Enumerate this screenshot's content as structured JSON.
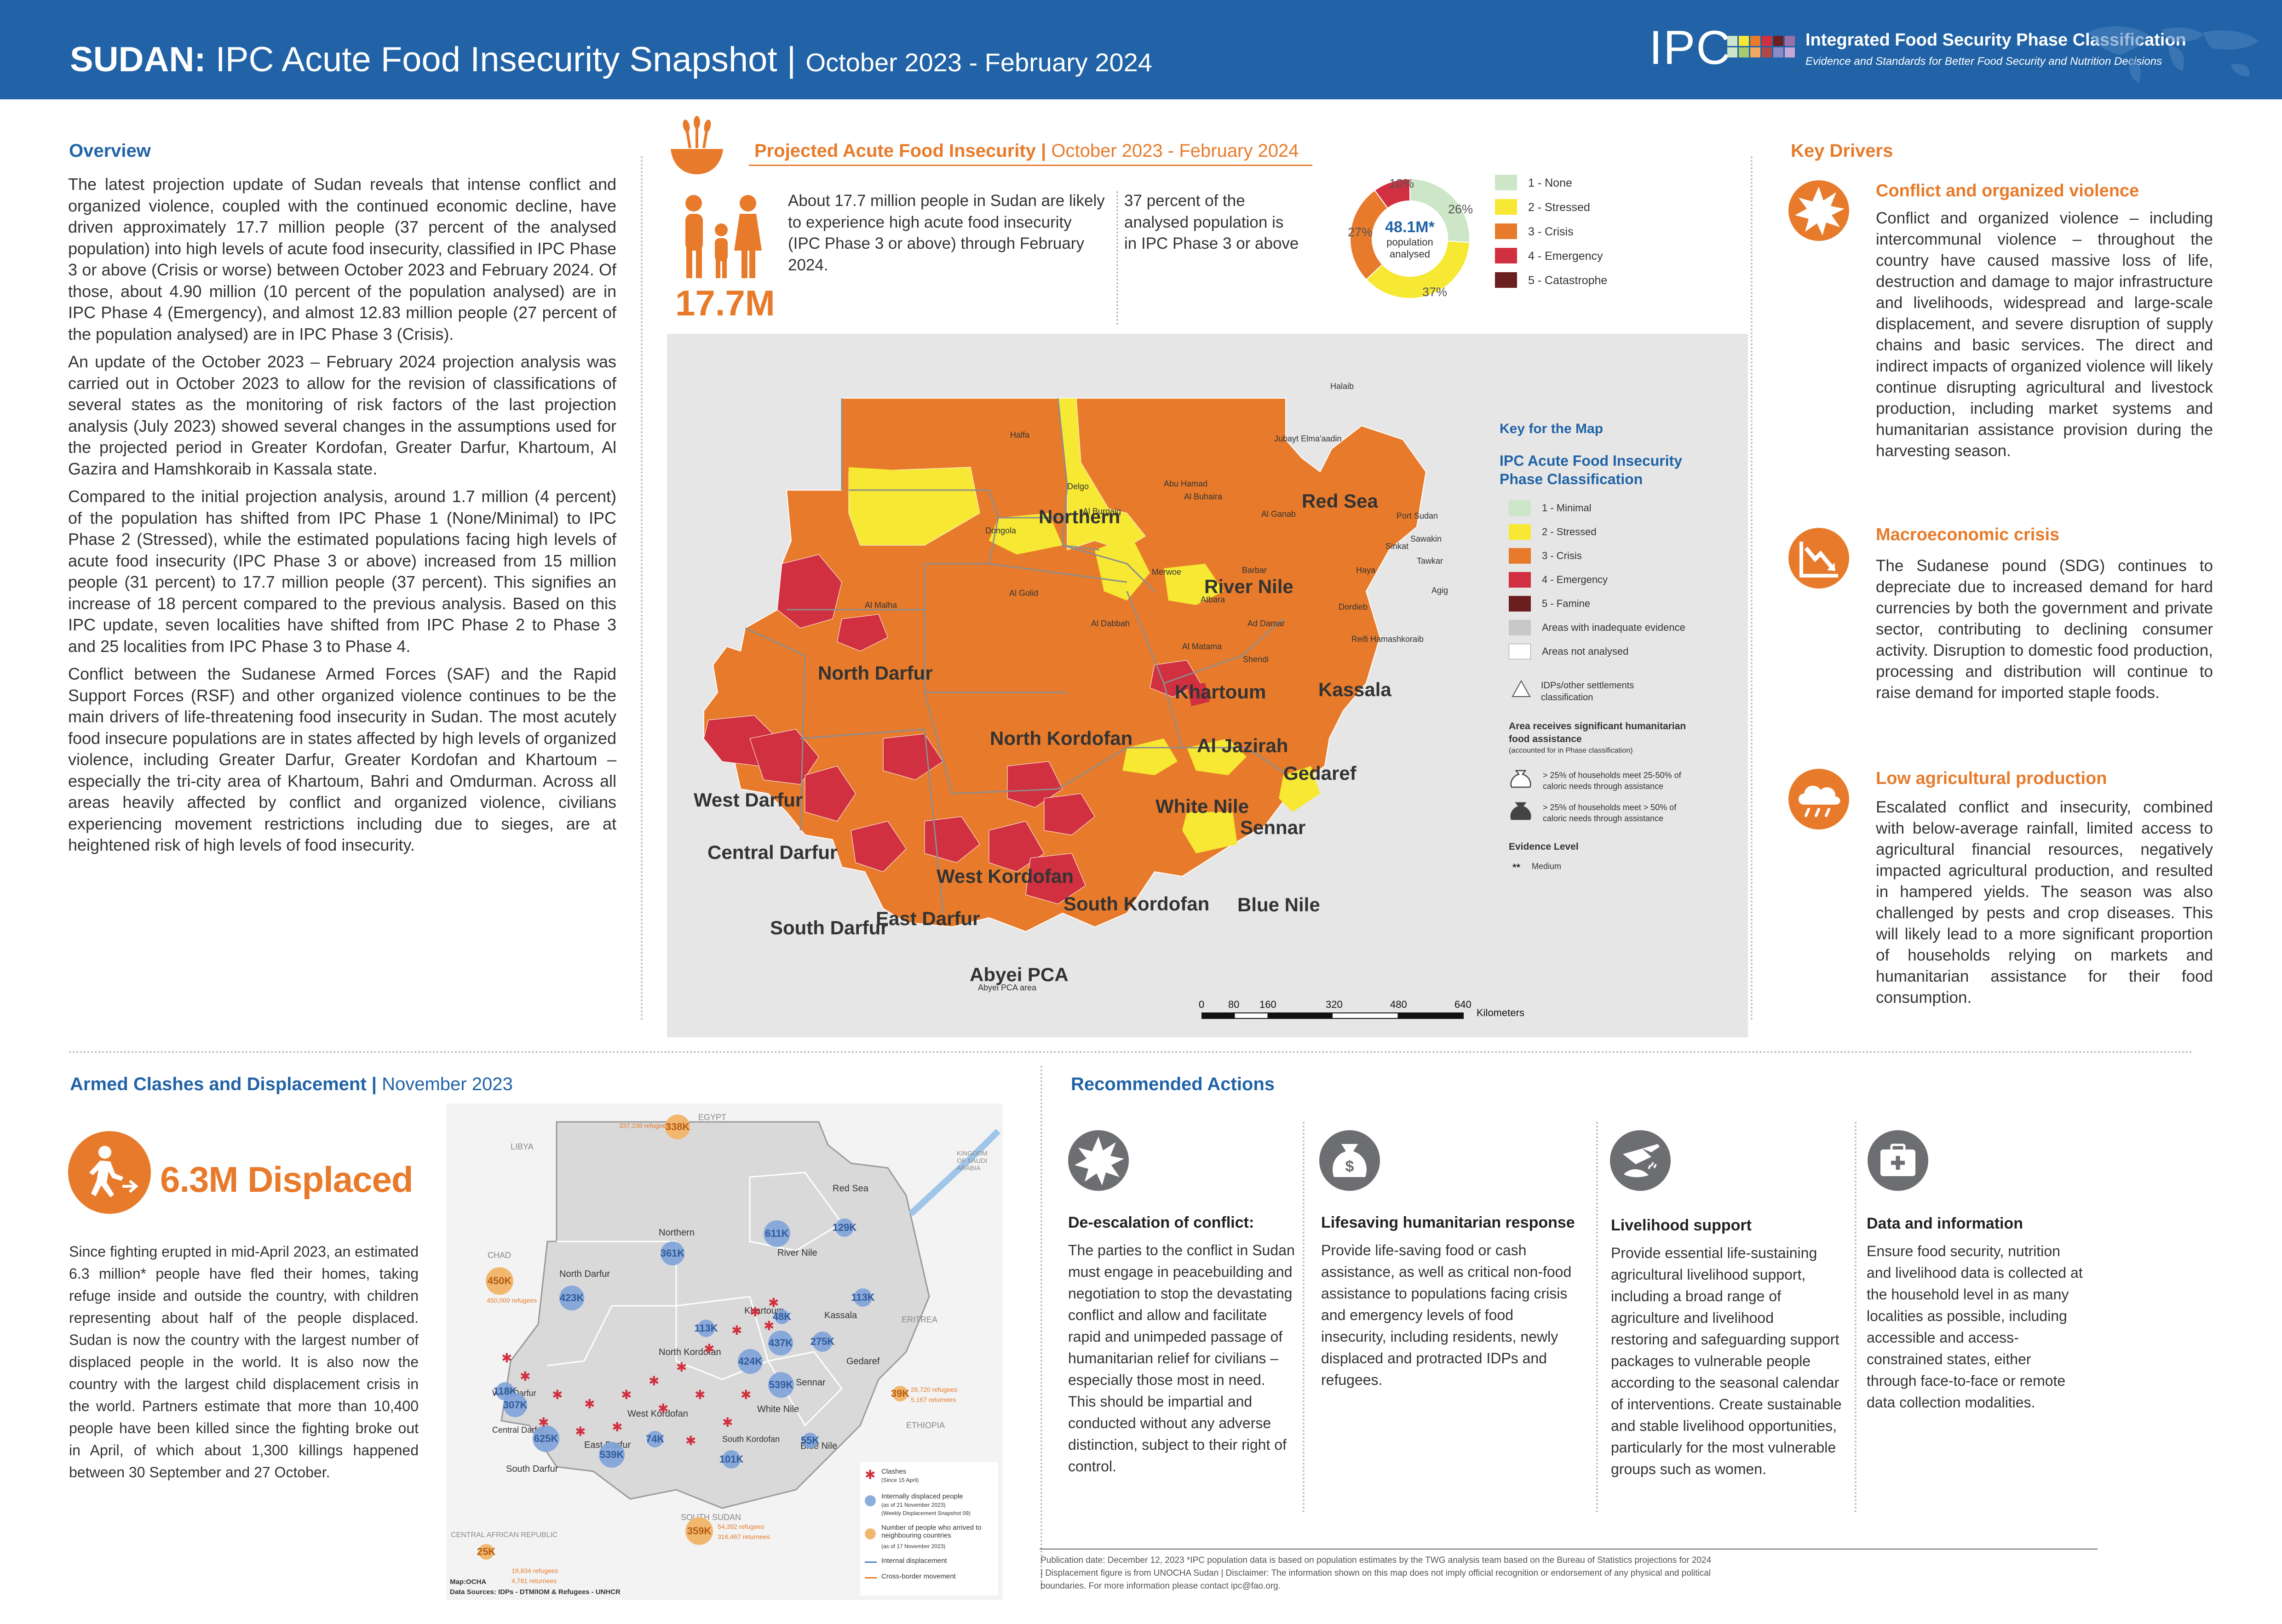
{
  "header": {
    "country": "SUDAN:",
    "title": " IPC Acute Food Insecurity Snapshot | ",
    "period": "October 2023 - February 2024",
    "logo_text": "IPC",
    "org_name": "Integrated Food Security Phase Classification",
    "org_tagline": "Evidence and Standards for Better Food Security and Nutrition Decisions"
  },
  "overview": {
    "heading": "Overview",
    "paragraphs": [
      "The latest projection update of Sudan reveals that intense conflict and organized violence, coupled with the continued economic decline, have driven approximately 17.7 million people (37 percent of the analysed population) into high levels of acute food insecurity, classified in IPC Phase 3 or above (Crisis or worse) between October 2023 and February 2024. Of those, about 4.90 million (10 percent of the population analysed) are in IPC Phase 4 (Emergency), and almost 12.83 million people (27 percent of the population analysed) are in IPC Phase 3 (Crisis).",
      "An update of the October 2023 – February 2024 projection analysis was carried out in October 2023 to allow for the revision of classifications of several states as the monitoring of risk factors of the last projection analysis (July 2023) showed several changes in the assumptions used for the projected period in Greater Kordofan, Greater Darfur, Khartoum, Al Gazira and Hamshkoraib in Kassala state.",
      "Compared to the initial projection analysis, around 1.7 million (4 percent) of the population has shifted from IPC Phase 1 (None/Minimal) to IPC Phase 2 (Stressed), while the estimated populations facing high levels of acute food insecurity (IPC Phase 3 or above) increased from 15 million people (31 percent) to 17.7 million people (37 percent). This signifies an increase of 18 percent compared to the previous analysis. Based on this IPC update, seven localities have shifted from IPC Phase 2 to Phase 3 and 25 localities from IPC Phase 3 to Phase 4.",
      "Conflict between the Sudanese Armed Forces (SAF) and the Rapid Support Forces (RSF) and other organized violence continues to be the main drivers of life-threatening food insecurity in Sudan. The most acutely food insecure populations are in states affected by high levels of organized violence, including Greater Darfur, Greater Kordofan and Khartoum – especially the tri-city area of Khartoum, Bahri and Omdurman. Across all areas heavily affected by conflict and organized violence, civilians experiencing movement restrictions including due to sieges, are at heightened risk of high levels of food insecurity."
    ]
  },
  "projected": {
    "heading": "Projected Acute Food Insecurity | ",
    "period": "October 2023 - February 2024",
    "big_number": "17.7M",
    "text1": "About 17.7 million people in Sudan are likely to experience high acute food insecurity (IPC Phase 3 or above) through February 2024.",
    "text2": "37 percent of the analysed population is in IPC Phase 3 or above",
    "donut_center": "48.1M*",
    "donut_sub": "population analysed",
    "donut": [
      {
        "label": "1 - None",
        "pct": 26,
        "color": "#cde6c7"
      },
      {
        "label": "2 - Stressed",
        "pct": 37,
        "color": "#f6e833"
      },
      {
        "label": "3 - Crisis",
        "pct": 27,
        "color": "#e77b2b"
      },
      {
        "label": "4 - Emergency",
        "pct": 10,
        "color": "#d0303f"
      },
      {
        "label": "5 - Catastrophe",
        "pct": 0,
        "color": "#6b1f1f"
      }
    ],
    "donut_pct_labels": [
      "26%",
      "37%",
      "27%",
      "10%"
    ]
  },
  "map": {
    "key_title": "Key for the Map",
    "key_subtitle": "IPC Acute Food Insecurity Phase Classification",
    "legend": [
      {
        "label": "1 - Minimal",
        "color": "#cde6c7"
      },
      {
        "label": "2 - Stressed",
        "color": "#f6e833"
      },
      {
        "label": "3 - Crisis",
        "color": "#e77b2b"
      },
      {
        "label": "4 - Emergency",
        "color": "#d0303f"
      },
      {
        "label": "5 - Famine",
        "color": "#6b1f1f"
      },
      {
        "label": "Areas with inadequate evidence",
        "color": "#c8c8c8"
      },
      {
        "label": "Areas not analysed",
        "color": "#ffffff"
      }
    ],
    "idp_label": "IDPs/other settlements classification",
    "assist_title": "Area receives significant humanitarian food assistance",
    "assist_note": "(accounted for in Phase classification)",
    "assist1": "> 25% of households meet 25-50% of caloric needs through assistance",
    "assist2": "> 25% of households meet > 50% of caloric needs through assistance",
    "evidence_title": "Evidence Level",
    "evidence_medium": "Medium",
    "evidence_stars": "**",
    "scale_ticks": [
      "0",
      "80",
      "160",
      "320",
      "480",
      "640"
    ],
    "scale_unit": "Kilometers",
    "states": [
      "Northern",
      "Red Sea",
      "River Nile",
      "North Darfur",
      "Khartoum",
      "Kassala",
      "North Kordofan",
      "Al Jazirah",
      "Gedaref",
      "White Nile",
      "Sennar",
      "West Darfur",
      "Central Darfur",
      "West Kordofan",
      "South Kordofan",
      "East Darfur",
      "South Darfur",
      "Blue Nile",
      "Abyei PCA"
    ],
    "localities": [
      "Halfa",
      "Delgo",
      "Halaib",
      "Jubayt Elma'aadin",
      "Abu Hamad",
      "Al Ganab",
      "Al Burgaig",
      "Dongola",
      "Al Buhaira",
      "Port Sudan",
      "Sawakin",
      "Sinkat",
      "Tawkar",
      "Haya",
      "Agig",
      "Barbar",
      "Merwoe",
      "Al Golid",
      "Atbara",
      "Ad Damar",
      "Al Dabbah",
      "Dordieb",
      "Al Malha",
      "Shendi",
      "Al Matama",
      "Reifi Hamashkoraib",
      "Abyei PCA area"
    ]
  },
  "drivers": {
    "heading": "Key Drivers",
    "items": [
      {
        "title": "Conflict and organized violence",
        "icon": "explosion-icon",
        "text": "Conflict and organized violence – including intercommunal violence – throughout the country have caused massive loss of life, destruction and damage to major infrastructure and livelihoods, widespread and large-scale displacement, and severe disruption of supply chains and basic services. The direct and indirect impacts of organized violence will likely continue disrupting agricultural and livestock production, including market systems and humanitarian assistance provision during the harvesting season."
      },
      {
        "title": "Macroeconomic crisis",
        "icon": "declining-chart-icon",
        "text": "The Sudanese pound (SDG) continues to depreciate due to increased demand for hard currencies by both the government and private sector, contributing to declining consumer activity. Disruption to domestic food production, processing and distribution will continue to raise demand for imported staple foods."
      },
      {
        "title": "Low agricultural production",
        "icon": "rain-cloud-icon",
        "text": "Escalated conflict and insecurity, combined with below-average rainfall, limited access to agricultural financial resources, negatively impacted agricultural production, and resulted in hampered yields. The season was also challenged by pests and crop diseases. This will likely lead to a more significant proportion of households relying on markets and humanitarian assistance for their food consumption."
      }
    ]
  },
  "displacement": {
    "heading": "Armed Clashes and Displacement | ",
    "period": "November 2023",
    "big": "6.3M Displaced",
    "text": "Since fighting erupted in mid-April 2023, an estimated 6.3 million* people have fled their homes, taking refuge inside and outside the country, with children representing about half of the people displaced. Sudan is now the country with the largest number of displaced people in the world. It is also now the country with the largest child displacement crisis in the world. Partners estimate that more than 10,400 people have been killed since the fighting broke out in April, of which about 1,300 killings happened between 30 September and 27 October.",
    "map_states": [
      "Northern",
      "Red Sea",
      "River Nile",
      "North Darfur",
      "North Kordofan",
      "West Kordofan",
      "East Darfur",
      "South Darfur",
      "Kassala",
      "Gedaref",
      "Sennar",
      "Blue Nile",
      "White Nile",
      "Khartoum",
      "Central Darfur",
      "West Darfur",
      "South Kordofan"
    ],
    "countries": [
      "LIBYA",
      "EGYPT",
      "KINGDOM OF SAUDI ARABIA",
      "CHAD",
      "ERITREA",
      "ETHIOPIA",
      "SOUTH SUDAN",
      "CENTRAL AFRICAN REPUBLIC"
    ],
    "idp_bubbles": [
      "611K",
      "129K",
      "361K",
      "423K",
      "48K",
      "113K",
      "113K",
      "437K",
      "275K",
      "424K",
      "539K",
      "118K",
      "307K",
      "625K",
      "74K",
      "539K",
      "101K",
      "55K"
    ],
    "refugee_bubbles": [
      "338K",
      "450K",
      "39K",
      "359K",
      "25K"
    ],
    "refugee_notes": [
      "337,238 refugees",
      "450,000 refugees",
      "26,720 refugees",
      "5,167 returnees",
      "54,392 refugees",
      "316,467 returnees",
      "19,834 refugees",
      "4,781 returnees"
    ],
    "legend": [
      "Clashes",
      "(Since 15 April)",
      "Internally displaced people",
      "(as of 21 November 2023)",
      "(Weekly Displacement Snapshot 09)",
      "Number of people who arrived to neighbouring countries",
      "(as of 17 November 2023)",
      "Internal displacement",
      "Cross-border movement"
    ],
    "source_map": "Map:OCHA",
    "source_data": "Data Sources: IDPs - DTM/IOM & Refugees - UNHCR"
  },
  "actions": {
    "heading": "Recommended Actions",
    "items": [
      {
        "title": "De-escalation of conflict:",
        "icon": "explosion-icon",
        "text": "The parties to the conflict in Sudan must engage in peacebuilding and negotiation to stop the devastating conflict and allow and facilitate rapid and unimpeded passage of humanitarian relief for civilians – especially those most in need. This should be impartial and conducted without any adverse distinction, subject to their right of control."
      },
      {
        "title": "Lifesaving humanitarian response",
        "icon": "money-bag-icon",
        "text": "Provide life-saving food or cash assistance, as well as critical non-food assistance to populations facing crisis and emergency levels of food insecurity, including residents, newly displaced and protracted IDPs and refugees."
      },
      {
        "title": "Livelihood support",
        "icon": "watering-can-icon",
        "text": "Provide essential life-sustaining agricultural livelihood support, including a broad range of agriculture and livelihood\nrestoring and safeguarding support packages to vulnerable people according to the seasonal calendar of interventions. Create sustainable and stable livelihood opportunities, particularly for the most vulnerable groups such as women."
      },
      {
        "title": "Data and information",
        "icon": "medical-kit-icon",
        "text": "Ensure food security, nutrition and livelihood data is collected at the household level in as many localities as possible, including accessible and access-constrained states, either through face-to-face or remote data collection modalities."
      }
    ]
  },
  "publication": "Publication date: December 12, 2023 *IPC population data is based on population estimates by the TWG analysis team based on the Bureau of Statistics projections for 2024 | Displacement figure is from UNOCHA Sudan | Disclaimer: The information shown on this map does not imply official recognition or endorsement of any physical and political boundaries. For more information please contact ipc@fao.org."
}
